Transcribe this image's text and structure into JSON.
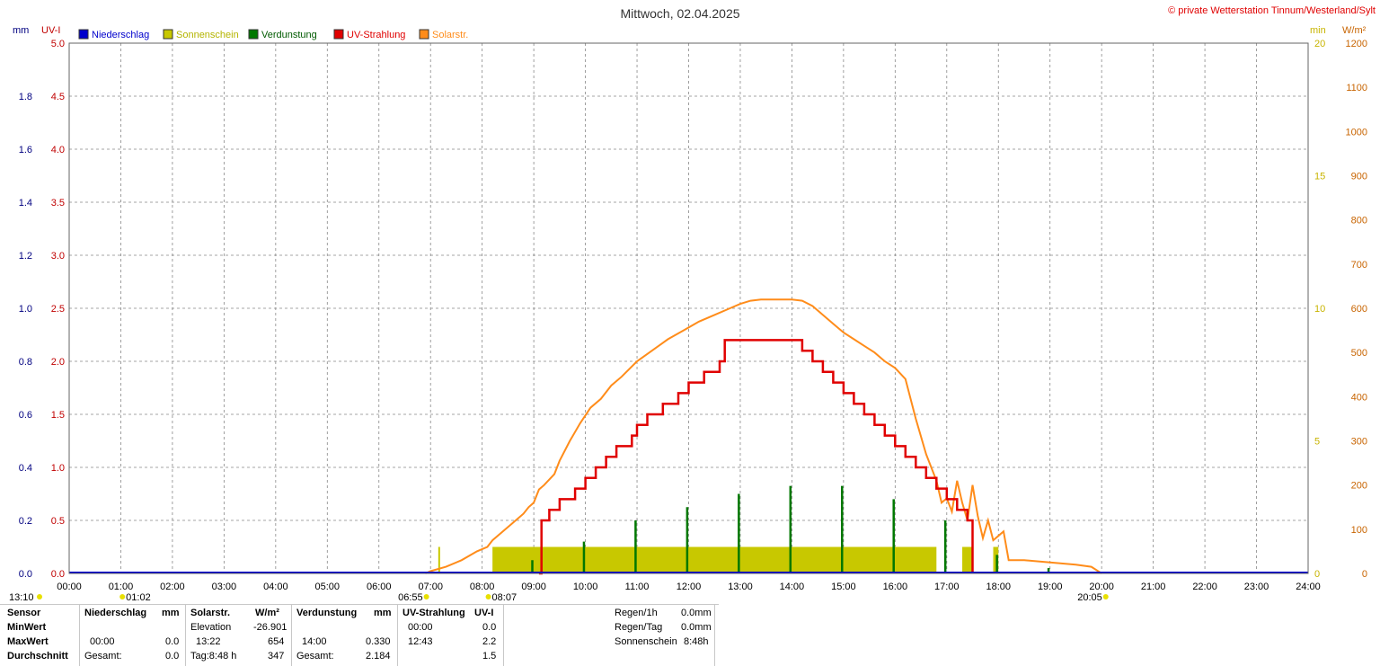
{
  "header": {
    "title": "Mittwoch, 02.04.2025",
    "copyright": "© private Wetterstation Tinnum/Westerland/Sylt"
  },
  "colors": {
    "niederschlag": "#0000cc",
    "sonnenschein": "#c8c800",
    "verdunstung": "#007800",
    "uv": "#e00000",
    "solar": "#ff8c1a",
    "axis_left": "#000080",
    "axis_uv": "#c00000",
    "axis_min": "#c8b400",
    "axis_wm2": "#c86400"
  },
  "chart_data": {
    "type": "line",
    "title": "Mittwoch, 02.04.2025",
    "legend": [
      "Niederschlag",
      "Sonnenschein",
      "Verdunstung",
      "UV-Strahlung",
      "Solarstr."
    ],
    "legend_placement": "top-left",
    "grid": true,
    "x_ticks": [
      "00:00",
      "01:00",
      "02:00",
      "03:00",
      "04:00",
      "05:00",
      "06:00",
      "07:00",
      "08:00",
      "09:00",
      "10:00",
      "11:00",
      "12:00",
      "13:00",
      "14:00",
      "15:00",
      "16:00",
      "17:00",
      "18:00",
      "19:00",
      "20:00",
      "21:00",
      "22:00",
      "23:00",
      "24:00"
    ],
    "xlim": [
      0,
      24
    ],
    "axes": {
      "mm": {
        "label": "mm",
        "ticks": [
          "0.0",
          "0.2",
          "0.4",
          "0.6",
          "0.8",
          "1.0",
          "1.2",
          "1.4",
          "1.6",
          "1.8"
        ],
        "ylim": [
          0,
          2.0
        ]
      },
      "uv": {
        "label": "UV-I",
        "ticks": [
          "0.0",
          "0.5",
          "1.0",
          "1.5",
          "2.0",
          "2.5",
          "3.0",
          "3.5",
          "4.0",
          "4.5",
          "5.0"
        ],
        "ylim": [
          0,
          5.0
        ]
      },
      "min": {
        "label": "min",
        "ticks": [
          "0",
          "5",
          "10",
          "15",
          "20"
        ],
        "ylim": [
          0,
          20
        ]
      },
      "wm2": {
        "label": "W/m²",
        "ticks": [
          "0",
          "100",
          "200",
          "300",
          "400",
          "500",
          "600",
          "700",
          "800",
          "900",
          "1000",
          "1100",
          "1200"
        ],
        "ylim": [
          0,
          1200
        ]
      }
    },
    "sun_markers": [
      {
        "label": "13:10",
        "t": 13.17
      },
      {
        "label": "01:02",
        "t": 1.03
      },
      {
        "label": "06:55",
        "t": 6.92
      },
      {
        "label": "08:07",
        "t": 8.12
      },
      {
        "label": "20:05",
        "t": 20.08
      }
    ],
    "series": [
      {
        "name": "Solarstr.",
        "axis": "wm2",
        "x": [
          6.9,
          7.0,
          7.3,
          7.6,
          7.9,
          8.1,
          8.2,
          8.4,
          8.6,
          8.8,
          8.9,
          9.0,
          9.1,
          9.2,
          9.4,
          9.5,
          9.7,
          9.9,
          10.1,
          10.3,
          10.5,
          10.7,
          11.0,
          11.3,
          11.6,
          11.9,
          12.2,
          12.5,
          12.8,
          13.0,
          13.2,
          13.4,
          13.6,
          13.8,
          14.0,
          14.2,
          14.4,
          14.6,
          14.8,
          15.0,
          15.2,
          15.4,
          15.6,
          15.8,
          16.0,
          16.2,
          16.4,
          16.6,
          16.8,
          16.9,
          17.0,
          17.1,
          17.2,
          17.3,
          17.4,
          17.5,
          17.6,
          17.7,
          17.8,
          17.9,
          18.0,
          18.1,
          18.2,
          18.5,
          19.0,
          19.5,
          19.8,
          20.0
        ],
        "values": [
          0,
          5,
          15,
          30,
          50,
          60,
          75,
          95,
          115,
          135,
          150,
          160,
          190,
          200,
          225,
          255,
          300,
          340,
          375,
          395,
          425,
          445,
          480,
          505,
          530,
          550,
          570,
          585,
          600,
          610,
          617,
          620,
          620,
          620,
          620,
          617,
          605,
          585,
          565,
          545,
          530,
          515,
          500,
          480,
          465,
          440,
          350,
          270,
          210,
          160,
          170,
          140,
          210,
          160,
          120,
          200,
          130,
          80,
          120,
          75,
          85,
          95,
          30,
          30,
          25,
          20,
          15,
          0
        ]
      },
      {
        "name": "UV-Strahlung",
        "axis": "uv",
        "x": [
          9.1,
          9.15,
          9.3,
          9.5,
          9.8,
          10.0,
          10.2,
          10.4,
          10.6,
          10.9,
          11.0,
          11.2,
          11.5,
          11.8,
          12.0,
          12.3,
          12.6,
          12.7,
          13.0,
          13.5,
          14.0,
          14.2,
          14.4,
          14.6,
          14.8,
          15.0,
          15.2,
          15.4,
          15.6,
          15.8,
          16.0,
          16.2,
          16.4,
          16.6,
          16.8,
          17.0,
          17.2,
          17.4,
          17.5
        ],
        "values": [
          0,
          0.5,
          0.6,
          0.7,
          0.8,
          0.9,
          1.0,
          1.1,
          1.2,
          1.3,
          1.4,
          1.5,
          1.6,
          1.7,
          1.8,
          1.9,
          2.0,
          2.2,
          2.2,
          2.2,
          2.2,
          2.1,
          2.0,
          1.9,
          1.8,
          1.7,
          1.6,
          1.5,
          1.4,
          1.3,
          1.2,
          1.1,
          1.0,
          0.9,
          0.8,
          0.7,
          0.6,
          0.5,
          0.0
        ]
      },
      {
        "name": "Verdunstung",
        "axis": "mm",
        "x": [
          8.95,
          9.95,
          10.95,
          11.95,
          12.95,
          13.95,
          14.95,
          15.95,
          16.95,
          17.95,
          18.95
        ],
        "values": [
          0.05,
          0.12,
          0.2,
          0.25,
          0.3,
          0.33,
          0.33,
          0.28,
          0.2,
          0.07,
          0.02
        ]
      },
      {
        "name": "Sonnenschein",
        "axis": "min",
        "bands": [
          [
            8.2,
            16.8
          ],
          [
            17.3,
            17.5
          ],
          [
            17.9,
            18.0
          ]
        ],
        "values": [
          1,
          1,
          1
        ]
      }
    ]
  },
  "table": {
    "col1": {
      "header": "Sensor",
      "rows": [
        "MinWert",
        "MaxWert",
        "Durchschnitt"
      ]
    },
    "niederschlag": {
      "header": "Niederschlag",
      "unit": "mm",
      "max_time": "00:00",
      "max_val": "0.0",
      "avg_label": "Gesamt:",
      "avg_val": "0.0"
    },
    "solar": {
      "header": "Solarstr.",
      "unit": "W/m²",
      "min_time": "Elevation",
      "min_val": "-26.901",
      "max_time": "13:22",
      "max_val": "654",
      "avg_label": "Tag:8:48 h",
      "avg_val": "347"
    },
    "verdunstung": {
      "header": "Verdunstung",
      "unit": "mm",
      "max_time": "14:00",
      "max_val": "0.330",
      "avg_label": "Gesamt:",
      "avg_val": "2.184"
    },
    "uv": {
      "header": "UV-Strahlung",
      "unit": "UV-I",
      "min_time": "00:00",
      "min_val": "0.0",
      "max_time": "12:43",
      "max_val": "2.2",
      "avg_val": "1.5"
    },
    "extra": {
      "regen_h_label": "Regen/1h",
      "regen_h_val": "0.0mm",
      "regen_tag_label": "Regen/Tag",
      "regen_tag_val": "0.0mm",
      "sonnenschein_label": "Sonnenschein",
      "sonnenschein_val": "8:48h"
    }
  }
}
